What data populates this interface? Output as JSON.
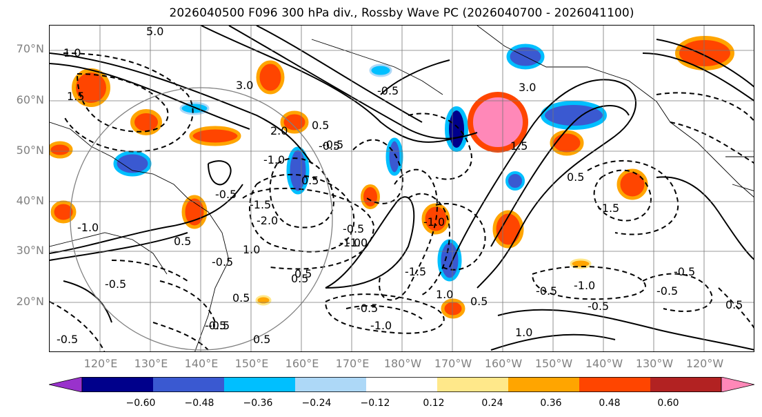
{
  "title": "2026040500 F096 300 hPa div., Rossby Wave PC (2026040700 - 2026041100)",
  "lat_labels": [
    "70°N",
    "60°N",
    "50°N",
    "40°N",
    "30°N",
    "20°N"
  ],
  "lon_labels": [
    "120°E",
    "130°E",
    "140°E",
    "150°E",
    "160°E",
    "170°E",
    "180°W",
    "170°W",
    "160°W",
    "150°W",
    "140°W",
    "130°W",
    "120°W"
  ],
  "colorbar": {
    "colors": [
      "#9932cc",
      "#00008b",
      "#3a59d1",
      "#00bfff",
      "#add8f7",
      "#ffffff",
      "#ffe88a",
      "#ffa500",
      "#ff4500",
      "#b22222",
      "#ff88b8"
    ],
    "ticks": [
      "−0.60",
      "−0.48",
      "−0.36",
      "−0.24",
      "−0.12",
      "0.12",
      "0.24",
      "0.36",
      "0.48",
      "0.60"
    ]
  },
  "contour_labels": [
    "5.0",
    "3.0",
    "2.0",
    "1.5",
    "1.0",
    "0.5",
    "-0.5",
    "-1.0",
    "-1.5",
    "-2.0",
    "-1.0",
    "-0.5",
    "0.5",
    "0.5",
    "-0.5",
    "1.0",
    "0.5",
    "-0.5",
    "-1.0",
    "-0.5",
    "-1.0",
    "-0.5",
    "-0.5",
    "-1.0",
    "-1.5",
    "-1.0",
    "0.5",
    "1.0",
    "-0.5",
    "-0.5",
    "-1.0",
    "-0.5",
    "-0.5",
    "-1.5",
    "0.5",
    "-0.5",
    "3.0",
    "1.5",
    "0.5",
    "1.0",
    "-0.5",
    "0.5",
    "-0.5",
    "-0.5",
    "0.5",
    "0.5"
  ]
}
